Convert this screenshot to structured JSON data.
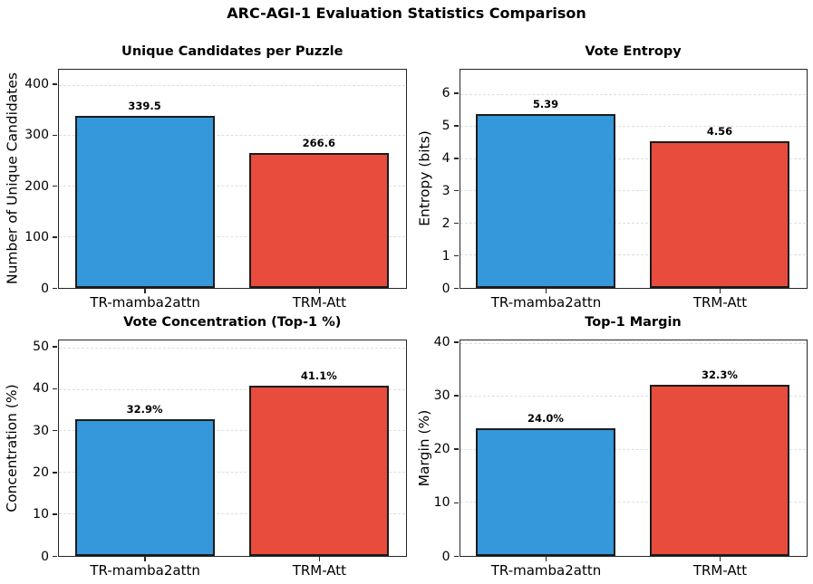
{
  "figure": {
    "title": "ARC-AGI-1 Evaluation Statistics Comparison"
  },
  "colors": {
    "bar_blue": "#3498db",
    "bar_red": "#e74c3c",
    "bar_edge": "#1c1c1c",
    "spine": "#262626",
    "grid": "#dedede",
    "background": "#ffffff",
    "text": "#000000"
  },
  "chart_data": [
    {
      "type": "bar",
      "title": "Unique Candidates per Puzzle",
      "xlabel": "",
      "ylabel": "Number of Unique Candidates",
      "categories": [
        "TR-mamba2attn",
        "TRM-Att"
      ],
      "values": [
        339.5,
        266.6
      ],
      "value_labels": [
        "339.5",
        "266.6"
      ],
      "yticks": [
        0,
        100,
        200,
        300,
        400
      ],
      "ylim": [
        0,
        430
      ],
      "bar_colors": [
        "#3498db",
        "#e74c3c"
      ],
      "grid": true,
      "legend_position": "none"
    },
    {
      "type": "bar",
      "title": "Vote Entropy",
      "xlabel": "",
      "ylabel": "Entropy (bits)",
      "categories": [
        "TR-mamba2attn",
        "TRM-Att"
      ],
      "values": [
        5.39,
        4.56
      ],
      "value_labels": [
        "5.39",
        "4.56"
      ],
      "yticks": [
        0,
        1,
        2,
        3,
        4,
        5,
        6
      ],
      "ylim": [
        0,
        6.75
      ],
      "bar_colors": [
        "#3498db",
        "#e74c3c"
      ],
      "grid": true,
      "legend_position": "none"
    },
    {
      "type": "bar",
      "title": "Vote Concentration (Top-1 %)",
      "xlabel": "",
      "ylabel": "Concentration (%)",
      "categories": [
        "TR-mamba2attn",
        "TRM-Att"
      ],
      "values": [
        32.9,
        41.1
      ],
      "value_labels": [
        "32.9%",
        "41.1%"
      ],
      "yticks": [
        0,
        10,
        20,
        30,
        40,
        50
      ],
      "ylim": [
        0,
        51.75
      ],
      "bar_colors": [
        "#3498db",
        "#e74c3c"
      ],
      "grid": true,
      "legend_position": "none"
    },
    {
      "type": "bar",
      "title": "Top-1 Margin",
      "xlabel": "",
      "ylabel": "Margin (%)",
      "categories": [
        "TR-mamba2attn",
        "TRM-Att"
      ],
      "values": [
        24.0,
        32.3
      ],
      "value_labels": [
        "24.0%",
        "32.3%"
      ],
      "yticks": [
        0,
        10,
        20,
        30,
        40
      ],
      "ylim": [
        0,
        40.5
      ],
      "bar_colors": [
        "#3498db",
        "#e74c3c"
      ],
      "grid": true,
      "legend_position": "none"
    }
  ]
}
